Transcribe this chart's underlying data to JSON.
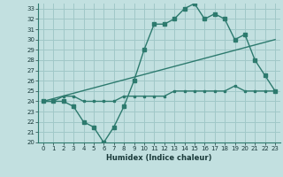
{
  "title": "",
  "xlabel": "Humidex (Indice chaleur)",
  "bg_color": "#c2e0e0",
  "grid_color": "#a0c8c8",
  "line_color": "#2d7a6e",
  "xlim": [
    -0.5,
    23.5
  ],
  "ylim": [
    20,
    33.5
  ],
  "xticks": [
    0,
    1,
    2,
    3,
    4,
    5,
    6,
    7,
    8,
    9,
    10,
    11,
    12,
    13,
    14,
    15,
    16,
    17,
    18,
    19,
    20,
    21,
    22,
    23
  ],
  "yticks": [
    20,
    21,
    22,
    23,
    24,
    25,
    26,
    27,
    28,
    29,
    30,
    31,
    32,
    33
  ],
  "line1_x": [
    0,
    1,
    2,
    3,
    4,
    5,
    6,
    7,
    8,
    9,
    10,
    11,
    12,
    13,
    14,
    15,
    16,
    17,
    18,
    19,
    20,
    21,
    22,
    23
  ],
  "line1_y": [
    24.0,
    24.0,
    24.0,
    23.5,
    22.0,
    21.5,
    20.0,
    21.5,
    23.5,
    26.0,
    29.0,
    31.5,
    31.5,
    32.0,
    33.0,
    33.5,
    32.0,
    32.5,
    32.0,
    30.0,
    30.5,
    28.0,
    26.5,
    25.0
  ],
  "line2_x": [
    0,
    1,
    2,
    3,
    4,
    5,
    6,
    7,
    8,
    9,
    10,
    11,
    12,
    13,
    14,
    15,
    16,
    17,
    18,
    19,
    20,
    21,
    22,
    23
  ],
  "line2_y": [
    24.0,
    24.0,
    24.5,
    24.5,
    24.0,
    24.0,
    24.0,
    24.0,
    24.5,
    24.5,
    24.5,
    24.5,
    24.5,
    25.0,
    25.0,
    25.0,
    25.0,
    25.0,
    25.0,
    25.5,
    25.0,
    25.0,
    25.0,
    25.0
  ],
  "line3_x": [
    0,
    23
  ],
  "line3_y": [
    24.0,
    30.0
  ]
}
